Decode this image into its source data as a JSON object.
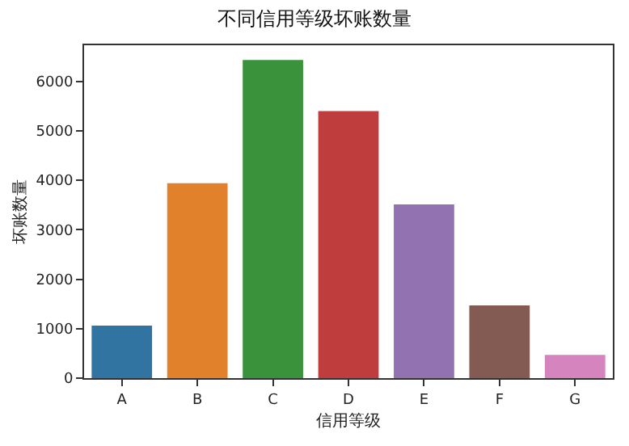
{
  "chart_data": {
    "type": "bar",
    "title": "不同信用等级坏账数量",
    "xlabel": "信用等级",
    "ylabel": "坏账数量",
    "categories": [
      "A",
      "B",
      "C",
      "D",
      "E",
      "F",
      "G"
    ],
    "values": [
      1060,
      3940,
      6430,
      5400,
      3510,
      1470,
      470
    ],
    "colors": [
      "#3274a1",
      "#e1812c",
      "#3a923a",
      "#c03d3e",
      "#9372b2",
      "#845b53",
      "#d684bd"
    ],
    "ylim": [
      0,
      6730
    ],
    "yticks": [
      0,
      1000,
      2000,
      3000,
      4000,
      5000,
      6000
    ],
    "grid": false
  }
}
